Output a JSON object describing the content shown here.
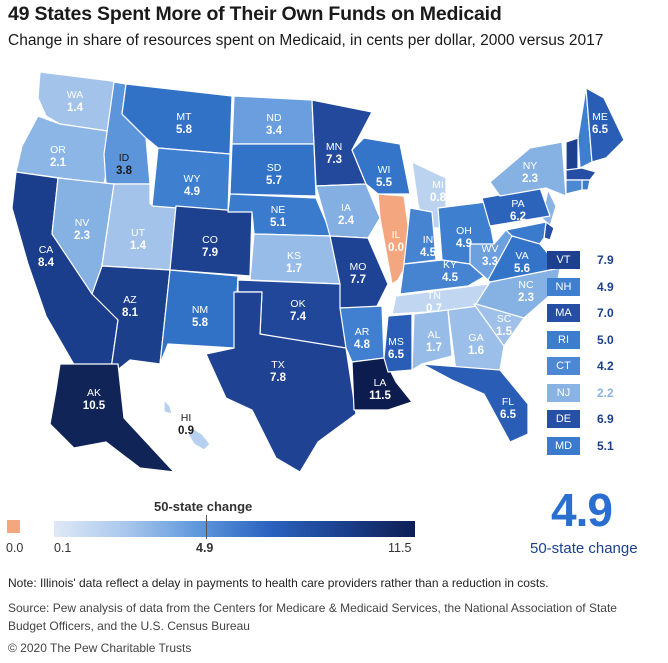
{
  "title": "49 States Spent More of Their Own Funds on Medicaid",
  "subtitle": "Change in share of resources spent on Medicaid, in cents per dollar, 2000 versus 2017",
  "states": [
    {
      "abbr": "WA",
      "value": "1.4",
      "color": "#a3c3ea",
      "text": "#ffffff"
    },
    {
      "abbr": "OR",
      "value": "2.1",
      "color": "#8cb6e6",
      "text": "#ffffff"
    },
    {
      "abbr": "CA",
      "value": "8.4",
      "color": "#1a3d8c",
      "text": "#ffffff"
    },
    {
      "abbr": "ID",
      "value": "3.8",
      "color": "#5d95da",
      "text": "#1a1a1a"
    },
    {
      "abbr": "NV",
      "value": "2.3",
      "color": "#86b1e3",
      "text": "#ffffff"
    },
    {
      "abbr": "UT",
      "value": "1.4",
      "color": "#a3c3ea",
      "text": "#ffffff"
    },
    {
      "abbr": "AZ",
      "value": "8.1",
      "color": "#1c3f8c",
      "text": "#ffffff"
    },
    {
      "abbr": "MT",
      "value": "5.8",
      "color": "#3172c7",
      "text": "#ffffff"
    },
    {
      "abbr": "WY",
      "value": "4.9",
      "color": "#3f7fcf",
      "text": "#ffffff"
    },
    {
      "abbr": "CO",
      "value": "7.9",
      "color": "#1d418f",
      "text": "#ffffff"
    },
    {
      "abbr": "NM",
      "value": "5.8",
      "color": "#3172c7",
      "text": "#ffffff"
    },
    {
      "abbr": "ND",
      "value": "3.4",
      "color": "#6a9ede",
      "text": "#ffffff"
    },
    {
      "abbr": "SD",
      "value": "5.7",
      "color": "#3273c8",
      "text": "#ffffff"
    },
    {
      "abbr": "NE",
      "value": "5.1",
      "color": "#3a7bcd",
      "text": "#ffffff"
    },
    {
      "abbr": "KS",
      "value": "1.7",
      "color": "#98bce8",
      "text": "#ffffff"
    },
    {
      "abbr": "OK",
      "value": "7.4",
      "color": "#21479a",
      "text": "#ffffff"
    },
    {
      "abbr": "TX",
      "value": "7.8",
      "color": "#1f4292",
      "text": "#ffffff"
    },
    {
      "abbr": "MN",
      "value": "7.3",
      "color": "#22499c",
      "text": "#ffffff"
    },
    {
      "abbr": "IA",
      "value": "2.4",
      "color": "#83afe3",
      "text": "#ffffff"
    },
    {
      "abbr": "MO",
      "value": "7.7",
      "color": "#1f4394",
      "text": "#ffffff"
    },
    {
      "abbr": "AR",
      "value": "4.8",
      "color": "#4180d0",
      "text": "#ffffff"
    },
    {
      "abbr": "LA",
      "value": "11.5",
      "color": "#0c1c4e",
      "text": "#ffffff"
    },
    {
      "abbr": "WI",
      "value": "5.5",
      "color": "#3475c9",
      "text": "#ffffff"
    },
    {
      "abbr": "IL",
      "value": "0.0",
      "color": "#f4a77e",
      "text": "#ffffff"
    },
    {
      "abbr": "MI",
      "value": "0.8",
      "color": "#bcd3f0",
      "text": "#ffffff"
    },
    {
      "abbr": "IN",
      "value": "4.5",
      "color": "#4684d2",
      "text": "#ffffff"
    },
    {
      "abbr": "OH",
      "value": "4.9",
      "color": "#3f7fcf",
      "text": "#ffffff"
    },
    {
      "abbr": "KY",
      "value": "4.5",
      "color": "#4684d2",
      "text": "#ffffff"
    },
    {
      "abbr": "TN",
      "value": "0.7",
      "color": "#c0d6f1",
      "text": "#ffffff"
    },
    {
      "abbr": "MS",
      "value": "6.5",
      "color": "#2a5db5",
      "text": "#ffffff"
    },
    {
      "abbr": "AL",
      "value": "1.7",
      "color": "#98bce8",
      "text": "#ffffff"
    },
    {
      "abbr": "GA",
      "value": "1.6",
      "color": "#9bbfe8",
      "text": "#ffffff"
    },
    {
      "abbr": "FL",
      "value": "6.5",
      "color": "#2a5db5",
      "text": "#ffffff"
    },
    {
      "abbr": "SC",
      "value": "1.5",
      "color": "#9fc1e9",
      "text": "#ffffff"
    },
    {
      "abbr": "NC",
      "value": "2.3",
      "color": "#86b1e3",
      "text": "#ffffff"
    },
    {
      "abbr": "VA",
      "value": "5.6",
      "color": "#3374c8",
      "text": "#ffffff"
    },
    {
      "abbr": "WV",
      "value": "3.3",
      "color": "#6da0de",
      "text": "#ffffff"
    },
    {
      "abbr": "PA",
      "value": "6.2",
      "color": "#2c63bb",
      "text": "#ffffff"
    },
    {
      "abbr": "NY",
      "value": "2.3",
      "color": "#86b1e3",
      "text": "#ffffff"
    },
    {
      "abbr": "ME",
      "value": "6.5",
      "color": "#2a5db5",
      "text": "#ffffff"
    },
    {
      "abbr": "AK",
      "value": "10.5",
      "color": "#102458",
      "text": "#ffffff"
    },
    {
      "abbr": "HI",
      "value": "0.9",
      "color": "#b8d0ef",
      "text": "#1a1a1a"
    }
  ],
  "small_states": [
    {
      "abbr": "VT",
      "value": "7.9",
      "color": "#1d418f"
    },
    {
      "abbr": "NH",
      "value": "4.9",
      "color": "#3f7fcf"
    },
    {
      "abbr": "MA",
      "value": "7.0",
      "color": "#254ea4"
    },
    {
      "abbr": "RI",
      "value": "5.0",
      "color": "#3c7dce"
    },
    {
      "abbr": "CT",
      "value": "4.2",
      "color": "#4c88d4"
    },
    {
      "abbr": "NJ",
      "value": "2.2",
      "color": "#89b3e4"
    },
    {
      "abbr": "DE",
      "value": "6.9",
      "color": "#264fa6"
    },
    {
      "abbr": "MD",
      "value": "5.1",
      "color": "#3a7bcd"
    }
  ],
  "scale": {
    "title": "50-state change",
    "illinois_label": "0.0",
    "min_label": "0.1",
    "mid_label": "4.9",
    "max_label": "11.5"
  },
  "highlight": {
    "value": "4.9",
    "label": "50-state change"
  },
  "note": "Note: Illinois' data reflect a delay in payments to health care providers rather than a reduction in costs.",
  "source": "Source: Pew analysis of data from the Centers for Medicare & Medicaid Services, the National Association of State Budget Officers, and the U.S. Census Bureau",
  "copyright": "© 2020 The Pew Charitable Trusts"
}
